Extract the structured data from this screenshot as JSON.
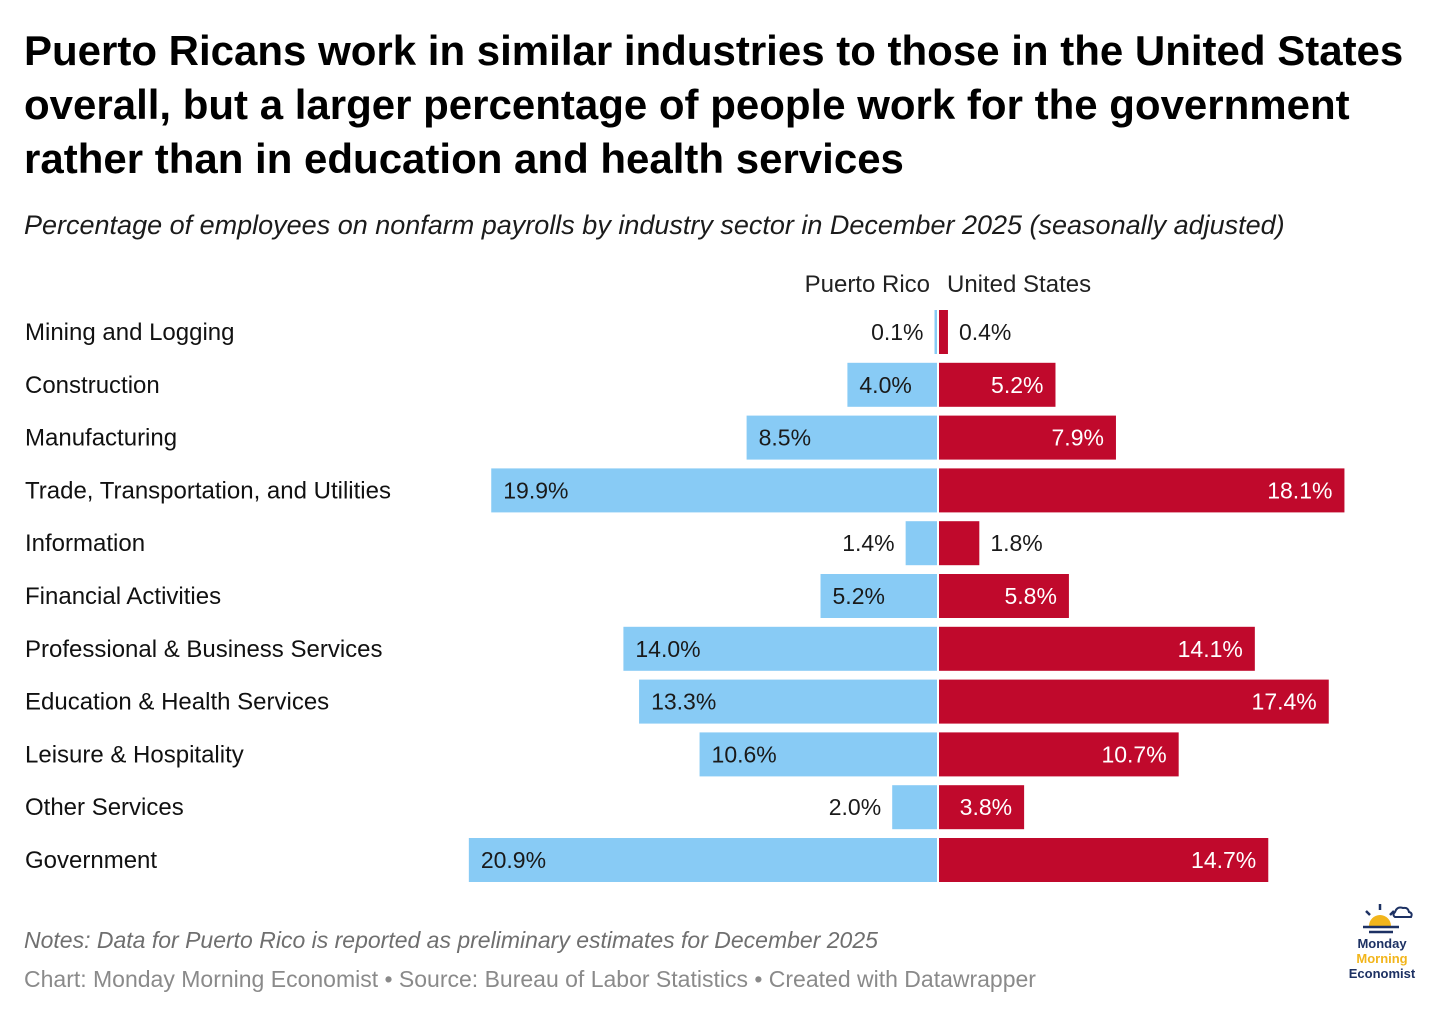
{
  "title": "Puerto Ricans work in similar industries to those in the United States overall, but a larger percentage of people work for the government rather than in education and health services",
  "subtitle": "Percentage of employees on nonfarm payrolls by industry sector in December 2025 (seasonally adjusted)",
  "notes": "Notes: Data for Puerto Rico is reported as preliminary estimates for December 2025",
  "credit": "Chart: Monday Morning Economist • Source: Bureau of Labor Statistics • Created with Datawrapper",
  "logo": {
    "line1": "Monday",
    "line2": "Morning",
    "line3": "Economist"
  },
  "colors": {
    "puerto_rico": "#88cbf5",
    "united_states": "#c0092c",
    "logo_navy": "#1d3163",
    "logo_gold": "#f2b51b"
  },
  "chart_data": {
    "type": "bar",
    "orientation": "horizontal-diverging",
    "categories": [
      "Mining and Logging",
      "Construction",
      "Manufacturing",
      "Trade, Transportation, and Utilities",
      "Information",
      "Financial Activities",
      "Professional & Business Services",
      "Education & Health Services",
      "Leisure & Hospitality",
      "Other Services",
      "Government"
    ],
    "series": [
      {
        "name": "Puerto Rico",
        "values": [
          0.1,
          4.0,
          8.5,
          19.9,
          1.4,
          5.2,
          14.0,
          13.3,
          10.6,
          2.0,
          20.9
        ],
        "labels": [
          "0.1%",
          "4.0%",
          "8.5%",
          "19.9%",
          "1.4%",
          "5.2%",
          "14.0%",
          "13.3%",
          "10.6%",
          "2.0%",
          "20.9%"
        ]
      },
      {
        "name": "United States",
        "values": [
          0.4,
          5.2,
          7.9,
          18.1,
          1.8,
          5.8,
          14.1,
          17.4,
          10.7,
          3.8,
          14.7
        ],
        "labels": [
          "0.4%",
          "5.2%",
          "7.9%",
          "18.1%",
          "1.8%",
          "5.8%",
          "14.1%",
          "17.4%",
          "10.7%",
          "3.8%",
          "14.7%"
        ]
      }
    ],
    "unit": "%",
    "xlim": [
      0,
      21
    ]
  }
}
